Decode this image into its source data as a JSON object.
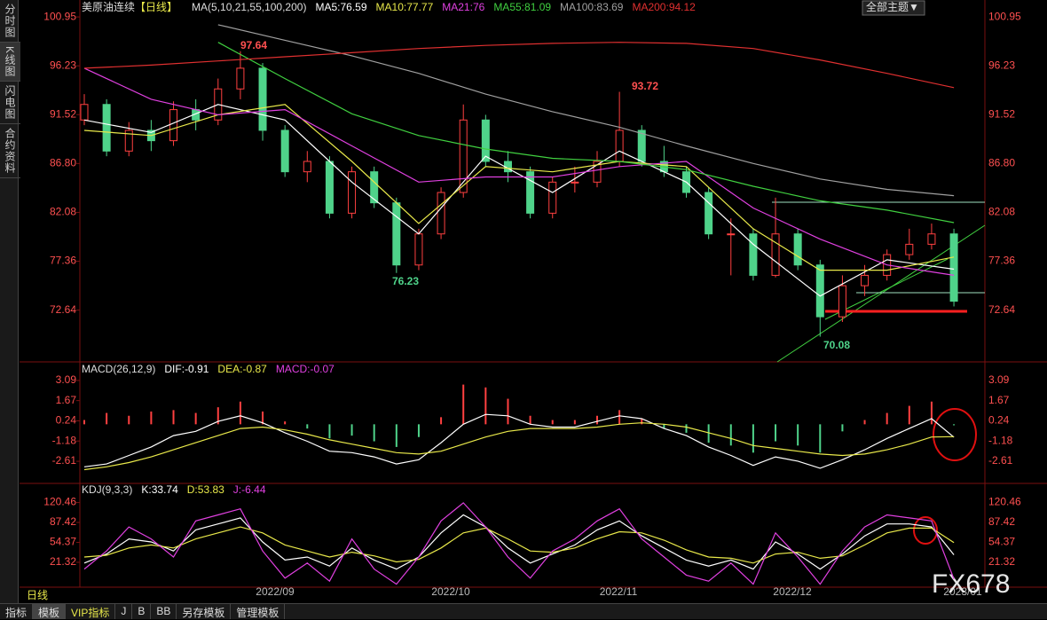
{
  "header": {
    "symbol": "美原油连续",
    "period": "【日线】",
    "theme_button": "全部主题▼"
  },
  "sidebar": [
    "分时图",
    "K线图",
    "闪电图",
    "合约资料"
  ],
  "toolbar": [
    "指标",
    "模板",
    "VIP指标",
    "J",
    "B",
    "BB",
    "另存模板",
    "管理模板"
  ],
  "period_label": "日线",
  "watermark": "FX678",
  "legend_separator": ":",
  "x_labels": [
    "2022/09",
    "2022/10",
    "2022/11",
    "2022/12",
    "2023/01"
  ],
  "chart_data": [
    {
      "type": "candlestick",
      "title": "MA(5,10,21,55,100,200)",
      "candles": [
        [
          91,
          93.5,
          90.5,
          92.5
        ],
        [
          92.5,
          93,
          87.5,
          88
        ],
        [
          88,
          90.8,
          87.5,
          90
        ],
        [
          90,
          91,
          88,
          89
        ],
        [
          89,
          92.8,
          88.5,
          92
        ],
        [
          92,
          93,
          90,
          91
        ],
        [
          91,
          95,
          90.5,
          94
        ],
        [
          94,
          97.64,
          93,
          96
        ],
        [
          96,
          96.5,
          89,
          90
        ],
        [
          90,
          90.5,
          85.5,
          86
        ],
        [
          86,
          88,
          85,
          87
        ],
        [
          87,
          87.5,
          81.5,
          82
        ],
        [
          82,
          86.5,
          81.5,
          86
        ],
        [
          86,
          86.5,
          82.5,
          83
        ],
        [
          83,
          83.5,
          76.23,
          77
        ],
        [
          77,
          80.5,
          76.5,
          80
        ],
        [
          80,
          84.5,
          79.5,
          84
        ],
        [
          84,
          92.5,
          83.5,
          91
        ],
        [
          91,
          91.5,
          86.5,
          87
        ],
        [
          87,
          88,
          85,
          86
        ],
        [
          86,
          86.5,
          81.5,
          82
        ],
        [
          82,
          85.5,
          81.5,
          85
        ],
        [
          85,
          86.5,
          84,
          85
        ],
        [
          85,
          88,
          84.5,
          87
        ],
        [
          87,
          93.72,
          86.5,
          90
        ],
        [
          90,
          90.5,
          86.5,
          87
        ],
        [
          87,
          88.5,
          85.5,
          86
        ],
        [
          86,
          86.5,
          83.5,
          84
        ],
        [
          84,
          84.5,
          79.5,
          80
        ],
        [
          80,
          81.5,
          76,
          80
        ],
        [
          80,
          80.5,
          75.5,
          76
        ],
        [
          76,
          83.5,
          75.8,
          80
        ],
        [
          80,
          80.5,
          76.5,
          77
        ],
        [
          77,
          77.5,
          70.08,
          72
        ],
        [
          72,
          76,
          71.5,
          75
        ],
        [
          75,
          77,
          74,
          76
        ],
        [
          76,
          78.5,
          75.5,
          78
        ],
        [
          78,
          80.5,
          77.5,
          79
        ],
        [
          79,
          81,
          78.5,
          80
        ],
        [
          80,
          80.5,
          73,
          73.5
        ]
      ],
      "ma_index": [
        0,
        3,
        6,
        9,
        12,
        15,
        18,
        21,
        24,
        27,
        30,
        33,
        36,
        39
      ],
      "series": [
        {
          "name": "MA5",
          "color": "#ffffff",
          "values": [
            91,
            89.8,
            92.5,
            91,
            85,
            80,
            87.5,
            84,
            88,
            85,
            79,
            74,
            77.5,
            76.59
          ]
        },
        {
          "name": "MA10",
          "color": "#e8e84a",
          "values": [
            90,
            89.5,
            91.5,
            92.5,
            87,
            81,
            86.5,
            86,
            87,
            86.5,
            80.5,
            76.5,
            76.5,
            77.77
          ]
        },
        {
          "name": "MA21",
          "color": "#e040e0",
          "values": [
            96,
            93,
            91.5,
            92,
            88.5,
            85,
            85.5,
            85.5,
            86.5,
            87,
            82.5,
            79.5,
            77,
            76.0
          ]
        },
        {
          "name": "MA55",
          "color": "#40d040",
          "values": [
            null,
            null,
            98.5,
            95,
            91.6,
            89.5,
            88.2,
            87.3,
            87,
            86.2,
            84.6,
            83.2,
            82.3,
            81.09
          ]
        },
        {
          "name": "MA100",
          "color": "#a0a0a0",
          "values": [
            null,
            null,
            100.2,
            98.7,
            97.2,
            95.5,
            93.5,
            91.8,
            90.3,
            88.5,
            86.8,
            85.3,
            84.3,
            83.69
          ]
        },
        {
          "name": "MA200",
          "color": "#e03030",
          "values": [
            96,
            96.3,
            96.7,
            97.1,
            97.5,
            97.9,
            98.2,
            98.4,
            98.5,
            98.4,
            97.9,
            96.8,
            95.5,
            94.12
          ]
        }
      ],
      "up_color": "#ff4040",
      "down_color": "#4fd38a",
      "ylim": [
        67.9,
        101.9
      ],
      "yticks": [
        100.95,
        96.23,
        91.52,
        {
          "value": 86.8,
          "label": "86.80"
        },
        82.08,
        77.36,
        72.64
      ]
    },
    {
      "type": "macd",
      "title": "MACD(26,12,9)",
      "series": [
        {
          "name": "DIF",
          "color": "#ffffff",
          "values": [
            -3.0,
            -2.8,
            -2.2,
            -1.6,
            -0.8,
            -0.5,
            0.2,
            0.6,
            0.1,
            -0.6,
            -1.2,
            -1.9,
            -2.0,
            -2.3,
            -2.8,
            -2.5,
            -1.3,
            0.0,
            0.7,
            0.6,
            0.0,
            -0.2,
            -0.2,
            0.2,
            0.6,
            0.4,
            -0.3,
            -0.8,
            -1.6,
            -2.2,
            -2.9,
            -2.3,
            -2.6,
            -3.1,
            -2.5,
            -1.8,
            -1.0,
            -0.3,
            0.4,
            -0.91
          ]
        },
        {
          "name": "DEA",
          "color": "#e8e84a",
          "values": [
            -3.2,
            -3.0,
            -2.7,
            -2.3,
            -1.8,
            -1.3,
            -0.8,
            -0.3,
            -0.2,
            -0.4,
            -0.7,
            -1.1,
            -1.4,
            -1.7,
            -2.0,
            -2.1,
            -1.9,
            -1.4,
            -0.9,
            -0.5,
            -0.3,
            -0.3,
            -0.3,
            -0.2,
            0.0,
            0.1,
            0.0,
            -0.2,
            -0.6,
            -1.0,
            -1.5,
            -1.7,
            -1.9,
            -2.1,
            -2.2,
            -2.1,
            -1.8,
            -1.4,
            -0.9,
            -0.87
          ]
        }
      ],
      "histogram": {
        "name": "MACD",
        "color": "#e040e0",
        "up_color": "#ff4040",
        "down_color": "#4fd38a",
        "values": [
          0.3,
          0.8,
          0.6,
          0.9,
          1.0,
          0.8,
          1.2,
          1.6,
          0.9,
          0.2,
          -0.3,
          -1.0,
          -0.8,
          -1.2,
          -1.6,
          -0.9,
          0.5,
          2.8,
          2.6,
          1.8,
          0.6,
          0.3,
          0.3,
          0.6,
          1.0,
          0.4,
          -0.3,
          -0.6,
          -1.3,
          -1.5,
          -2.0,
          -1.2,
          -1.5,
          -2.0,
          -0.5,
          0.3,
          0.8,
          1.3,
          1.6,
          -0.07
        ]
      },
      "ylim": [
        -4.17,
        3.65
      ],
      "yticks": [
        3.09,
        1.67,
        0.24,
        -1.18,
        -2.61
      ]
    },
    {
      "type": "line",
      "title": "KDJ(9,3,3)",
      "series": [
        {
          "name": "K",
          "color": "#ffffff",
          "values": [
            20,
            35,
            60,
            55,
            40,
            75,
            85,
            95,
            55,
            25,
            30,
            15,
            45,
            25,
            10,
            30,
            70,
            100,
            80,
            45,
            20,
            35,
            50,
            75,
            90,
            65,
            45,
            25,
            15,
            25,
            10,
            55,
            35,
            10,
            35,
            65,
            85,
            85,
            80,
            33.74
          ]
        },
        {
          "name": "D",
          "color": "#e8e84a",
          "values": [
            30,
            33,
            45,
            50,
            45,
            60,
            70,
            80,
            70,
            50,
            40,
            30,
            38,
            32,
            22,
            26,
            45,
            70,
            78,
            60,
            40,
            38,
            45,
            60,
            72,
            70,
            58,
            42,
            30,
            28,
            20,
            35,
            38,
            28,
            32,
            50,
            70,
            78,
            78,
            53.83
          ]
        },
        {
          "name": "J",
          "color": "#e040e0",
          "values": [
            10,
            40,
            80,
            60,
            30,
            90,
            100,
            110,
            40,
            -5,
            20,
            -10,
            60,
            10,
            -15,
            30,
            90,
            120,
            80,
            30,
            -5,
            40,
            60,
            90,
            110,
            60,
            30,
            0,
            -10,
            20,
            -15,
            70,
            30,
            -15,
            40,
            80,
            100,
            95,
            90,
            -6.44
          ]
        }
      ],
      "ylim": [
        -20,
        136
      ],
      "yticks": [
        120.46,
        87.42,
        54.37,
        21.32
      ]
    }
  ]
}
